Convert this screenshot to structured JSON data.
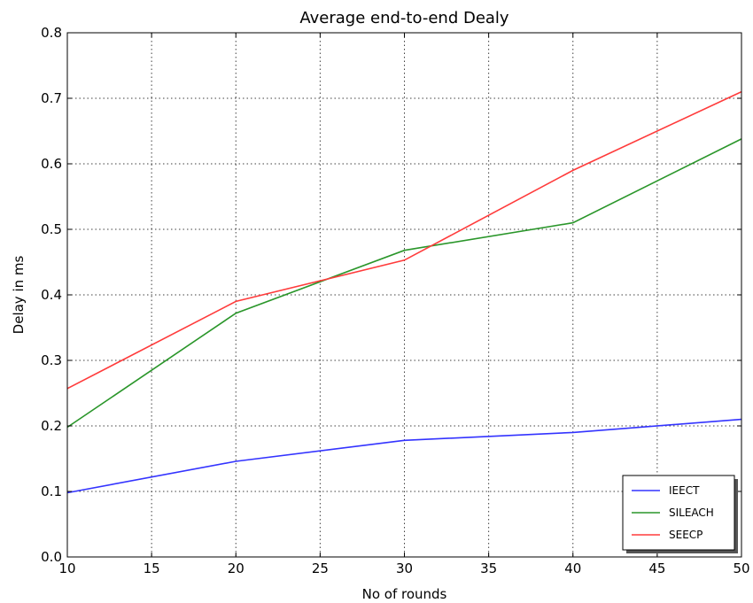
{
  "chart_data": {
    "type": "line",
    "title": "Average end-to-end Dealy",
    "xlabel": "No of rounds",
    "ylabel": "Delay in ms",
    "xlim": [
      10,
      50
    ],
    "ylim": [
      0.0,
      0.8
    ],
    "xticks": [
      10,
      15,
      20,
      25,
      30,
      35,
      40,
      45,
      50
    ],
    "xtick_labels": [
      "10",
      "15",
      "20",
      "25",
      "30",
      "35",
      "40",
      "45",
      "50"
    ],
    "yticks": [
      0.0,
      0.1,
      0.2,
      0.3,
      0.4,
      0.5,
      0.6,
      0.7,
      0.8
    ],
    "ytick_labels": [
      "0.0",
      "0.1",
      "0.2",
      "0.3",
      "0.4",
      "0.5",
      "0.6",
      "0.7",
      "0.8"
    ],
    "grid": true,
    "legend_position": "bottom-right",
    "x": [
      10,
      20,
      30,
      40,
      50
    ],
    "series": [
      {
        "name": "IEECT",
        "color": "#3333ff",
        "values": [
          0.098,
          0.146,
          0.178,
          0.19,
          0.21
        ]
      },
      {
        "name": "SILEACH",
        "color": "#2a962a",
        "values": [
          0.198,
          0.372,
          0.468,
          0.51,
          0.638
        ]
      },
      {
        "name": "SEECP",
        "color": "#ff3b3b",
        "values": [
          0.257,
          0.39,
          0.453,
          0.59,
          0.71
        ]
      }
    ]
  }
}
